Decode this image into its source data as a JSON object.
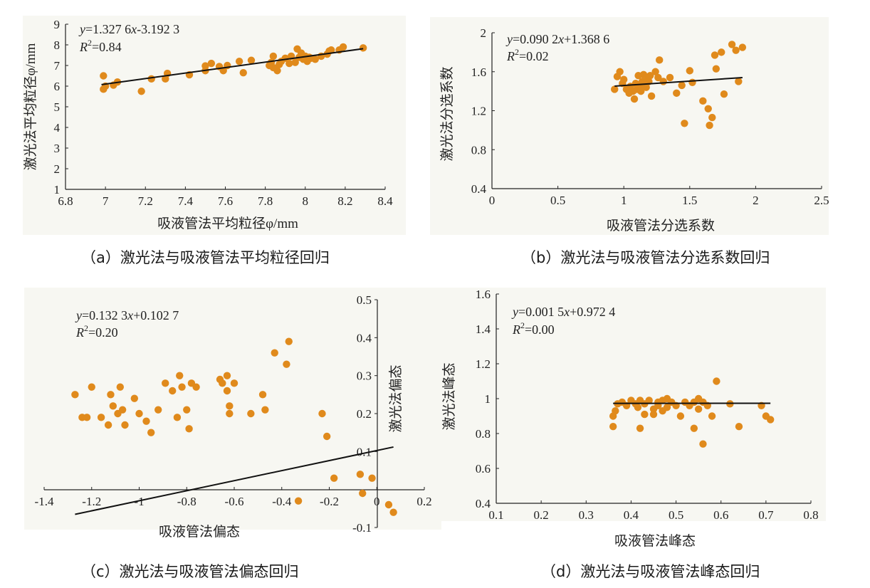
{
  "colors": {
    "point": "#e08a1c",
    "line": "#111111",
    "axis": "#222222",
    "panel_bg": "#f7f7f2"
  },
  "chart_data": [
    {
      "type": "scatter",
      "caption": "（a）激光法与吸液管法平均粒径回归",
      "equation_y": "y",
      "equation_rest": "=1.327 6",
      "equation_x": "x",
      "equation_tail": "-3.192 3",
      "r2_label": "R",
      "r2_value": "=0.84",
      "xlabel": "吸液管法平均粒径φ/mm",
      "ylabel": "激光法平均粒径φ/mm",
      "xlim": [
        6.8,
        8.4
      ],
      "ylim": [
        1,
        9
      ],
      "xticks": [
        "6.8",
        "7",
        "7.2",
        "7.4",
        "7.6",
        "7.8",
        "8",
        "8.2",
        "8.4"
      ],
      "yticks": [
        "1",
        "2",
        "3",
        "4",
        "5",
        "6",
        "7",
        "8",
        "9"
      ],
      "fit": {
        "slope": 1.3276,
        "intercept": -3.1923,
        "x_range": [
          6.98,
          8.29
        ]
      },
      "points": [
        [
          6.99,
          5.85
        ],
        [
          6.99,
          6.5
        ],
        [
          7.0,
          6.0
        ],
        [
          7.04,
          6.05
        ],
        [
          7.06,
          6.2
        ],
        [
          7.18,
          5.75
        ],
        [
          7.23,
          6.35
        ],
        [
          7.3,
          6.35
        ],
        [
          7.31,
          6.62
        ],
        [
          7.42,
          6.55
        ],
        [
          7.5,
          6.75
        ],
        [
          7.5,
          6.98
        ],
        [
          7.53,
          7.1
        ],
        [
          7.57,
          6.95
        ],
        [
          7.59,
          6.75
        ],
        [
          7.61,
          7.0
        ],
        [
          7.67,
          7.2
        ],
        [
          7.69,
          6.65
        ],
        [
          7.73,
          7.25
        ],
        [
          7.82,
          7.0
        ],
        [
          7.83,
          7.15
        ],
        [
          7.84,
          7.45
        ],
        [
          7.84,
          6.9
        ],
        [
          7.86,
          6.75
        ],
        [
          7.87,
          7.05
        ],
        [
          7.88,
          7.2
        ],
        [
          7.9,
          7.35
        ],
        [
          7.92,
          7.1
        ],
        [
          7.93,
          7.45
        ],
        [
          7.95,
          7.15
        ],
        [
          7.96,
          7.8
        ],
        [
          7.97,
          7.4
        ],
        [
          7.98,
          7.6
        ],
        [
          7.99,
          7.3
        ],
        [
          8.0,
          7.45
        ],
        [
          8.01,
          7.2
        ],
        [
          8.02,
          7.4
        ],
        [
          8.03,
          7.35
        ],
        [
          8.05,
          7.3
        ],
        [
          8.08,
          7.45
        ],
        [
          8.11,
          7.55
        ],
        [
          8.12,
          7.7
        ],
        [
          8.13,
          7.75
        ],
        [
          8.17,
          7.75
        ],
        [
          8.19,
          7.9
        ],
        [
          8.29,
          7.85
        ]
      ]
    },
    {
      "type": "scatter",
      "caption": "（b）激光法与吸液管法分选系数回归",
      "equation_y": "y",
      "equation_rest": "=0.090 2",
      "equation_x": "x",
      "equation_tail": "+1.368 6",
      "r2_label": "R",
      "r2_value": "=0.02",
      "xlabel": "吸液管法分选系数",
      "ylabel": "激光法分选系数",
      "xlim": [
        0,
        2.5
      ],
      "ylim": [
        0.4,
        2.0
      ],
      "xticks": [
        "0",
        "0.5",
        "1",
        "1.5",
        "2",
        "2.5"
      ],
      "yticks": [
        "0.4",
        "0.8",
        "1.2",
        "1.6",
        "2"
      ],
      "fit": {
        "slope": 0.0902,
        "intercept": 1.3686,
        "x_range": [
          0.93,
          1.9
        ]
      },
      "points": [
        [
          0.93,
          1.42
        ],
        [
          0.95,
          1.55
        ],
        [
          0.97,
          1.6
        ],
        [
          0.99,
          1.48
        ],
        [
          1.0,
          1.52
        ],
        [
          1.02,
          1.42
        ],
        [
          1.04,
          1.38
        ],
        [
          1.05,
          1.45
        ],
        [
          1.07,
          1.4
        ],
        [
          1.08,
          1.32
        ],
        [
          1.09,
          1.48
        ],
        [
          1.1,
          1.42
        ],
        [
          1.11,
          1.56
        ],
        [
          1.12,
          1.45
        ],
        [
          1.13,
          1.4
        ],
        [
          1.14,
          1.5
        ],
        [
          1.15,
          1.57
        ],
        [
          1.16,
          1.46
        ],
        [
          1.17,
          1.44
        ],
        [
          1.18,
          1.52
        ],
        [
          1.19,
          1.5
        ],
        [
          1.2,
          1.56
        ],
        [
          1.21,
          1.35
        ],
        [
          1.24,
          1.6
        ],
        [
          1.26,
          1.54
        ],
        [
          1.27,
          1.72
        ],
        [
          1.3,
          1.5
        ],
        [
          1.35,
          1.54
        ],
        [
          1.4,
          1.38
        ],
        [
          1.44,
          1.46
        ],
        [
          1.46,
          1.07
        ],
        [
          1.5,
          1.61
        ],
        [
          1.52,
          1.49
        ],
        [
          1.6,
          1.3
        ],
        [
          1.64,
          1.22
        ],
        [
          1.65,
          1.05
        ],
        [
          1.67,
          1.13
        ],
        [
          1.69,
          1.77
        ],
        [
          1.7,
          1.63
        ],
        [
          1.74,
          1.8
        ],
        [
          1.76,
          1.37
        ],
        [
          1.82,
          1.88
        ],
        [
          1.85,
          1.82
        ],
        [
          1.87,
          1.5
        ],
        [
          1.9,
          1.85
        ]
      ]
    },
    {
      "type": "scatter",
      "caption": "（c）激光法与吸液管法偏态回归",
      "equation_y": "y",
      "equation_rest": "=0.132 3",
      "equation_x": "x",
      "equation_tail": "+0.102 7",
      "r2_label": "R",
      "r2_value": "=0.20",
      "xlabel": "吸液管法偏态",
      "ylabel": "激光法偏态",
      "xlim": [
        -1.4,
        0.2
      ],
      "ylim": [
        -0.1,
        0.5
      ],
      "xticks": [
        "-1.4",
        "-1.2",
        "-1",
        "-0.8",
        "-0.6",
        "-0.4",
        "-0.2",
        "0",
        "0.2"
      ],
      "yticks": [
        "-0.1",
        "0.1",
        "0.2",
        "0.3",
        "0.4",
        "0.5"
      ],
      "fit": {
        "slope": 0.1323,
        "intercept": 0.1027,
        "x_range": [
          -1.27,
          0.07
        ]
      },
      "points": [
        [
          -1.27,
          0.25
        ],
        [
          -1.24,
          0.19
        ],
        [
          -1.22,
          0.19
        ],
        [
          -1.2,
          0.27
        ],
        [
          -1.16,
          0.19
        ],
        [
          -1.13,
          0.17
        ],
        [
          -1.12,
          0.25
        ],
        [
          -1.11,
          0.22
        ],
        [
          -1.09,
          0.2
        ],
        [
          -1.08,
          0.27
        ],
        [
          -1.07,
          0.21
        ],
        [
          -1.06,
          0.17
        ],
        [
          -1.02,
          0.24
        ],
        [
          -1.0,
          0.2
        ],
        [
          -0.97,
          0.18
        ],
        [
          -0.95,
          0.15
        ],
        [
          -0.92,
          0.21
        ],
        [
          -0.89,
          0.28
        ],
        [
          -0.86,
          0.26
        ],
        [
          -0.84,
          0.19
        ],
        [
          -0.83,
          0.3
        ],
        [
          -0.82,
          0.27
        ],
        [
          -0.8,
          0.21
        ],
        [
          -0.79,
          0.16
        ],
        [
          -0.78,
          0.28
        ],
        [
          -0.76,
          0.27
        ],
        [
          -0.66,
          0.29
        ],
        [
          -0.65,
          0.28
        ],
        [
          -0.63,
          0.3
        ],
        [
          -0.63,
          0.26
        ],
        [
          -0.62,
          0.22
        ],
        [
          -0.62,
          0.2
        ],
        [
          -0.6,
          0.28
        ],
        [
          -0.53,
          0.2
        ],
        [
          -0.48,
          0.25
        ],
        [
          -0.47,
          0.21
        ],
        [
          -0.43,
          0.36
        ],
        [
          -0.38,
          0.33
        ],
        [
          -0.37,
          0.39
        ],
        [
          -0.33,
          -0.03
        ],
        [
          -0.23,
          0.2
        ],
        [
          -0.21,
          0.14
        ],
        [
          -0.18,
          0.03
        ],
        [
          -0.07,
          0.04
        ],
        [
          -0.06,
          -0.01
        ],
        [
          -0.02,
          0.03
        ],
        [
          0.05,
          -0.04
        ],
        [
          0.07,
          -0.06
        ]
      ]
    },
    {
      "type": "scatter",
      "caption": "（d）激光法与吸液管法峰态回归",
      "equation_y": "y",
      "equation_rest": "=0.001 5",
      "equation_x": "x",
      "equation_tail": "+0.972 4",
      "r2_label": "R",
      "r2_value": "=0.00",
      "xlabel": "吸液管法峰态",
      "ylabel": "激光法峰态",
      "xlim": [
        0.1,
        0.8
      ],
      "ylim": [
        0.4,
        1.6
      ],
      "xticks": [
        "0.1",
        "0.2",
        "0.3",
        "0.4",
        "0.5",
        "0.6",
        "0.7",
        "0.8"
      ],
      "yticks": [
        "0.4",
        "0.6",
        "0.8",
        "1",
        "1.2",
        "1.4",
        "1.6"
      ],
      "fit": {
        "slope": 0.0015,
        "intercept": 0.9724,
        "x_range": [
          0.36,
          0.71
        ]
      },
      "points": [
        [
          0.36,
          0.9
        ],
        [
          0.36,
          0.84
        ],
        [
          0.365,
          0.93
        ],
        [
          0.37,
          0.97
        ],
        [
          0.38,
          0.98
        ],
        [
          0.39,
          0.96
        ],
        [
          0.4,
          0.99
        ],
        [
          0.41,
          0.97
        ],
        [
          0.415,
          0.95
        ],
        [
          0.42,
          0.99
        ],
        [
          0.42,
          0.83
        ],
        [
          0.43,
          0.97
        ],
        [
          0.43,
          0.91
        ],
        [
          0.44,
          0.99
        ],
        [
          0.45,
          0.94
        ],
        [
          0.45,
          0.91
        ],
        [
          0.46,
          0.98
        ],
        [
          0.46,
          0.96
        ],
        [
          0.47,
          0.99
        ],
        [
          0.47,
          0.93
        ],
        [
          0.48,
          1.0
        ],
        [
          0.48,
          0.95
        ],
        [
          0.49,
          0.98
        ],
        [
          0.5,
          0.96
        ],
        [
          0.51,
          0.9
        ],
        [
          0.52,
          0.98
        ],
        [
          0.53,
          0.96
        ],
        [
          0.54,
          0.98
        ],
        [
          0.54,
          0.83
        ],
        [
          0.55,
          1.0
        ],
        [
          0.55,
          0.94
        ],
        [
          0.56,
          0.98
        ],
        [
          0.56,
          0.74
        ],
        [
          0.57,
          0.96
        ],
        [
          0.58,
          0.9
        ],
        [
          0.59,
          1.1
        ],
        [
          0.62,
          0.97
        ],
        [
          0.64,
          0.84
        ],
        [
          0.69,
          0.96
        ],
        [
          0.7,
          0.9
        ],
        [
          0.71,
          0.88
        ]
      ]
    }
  ]
}
